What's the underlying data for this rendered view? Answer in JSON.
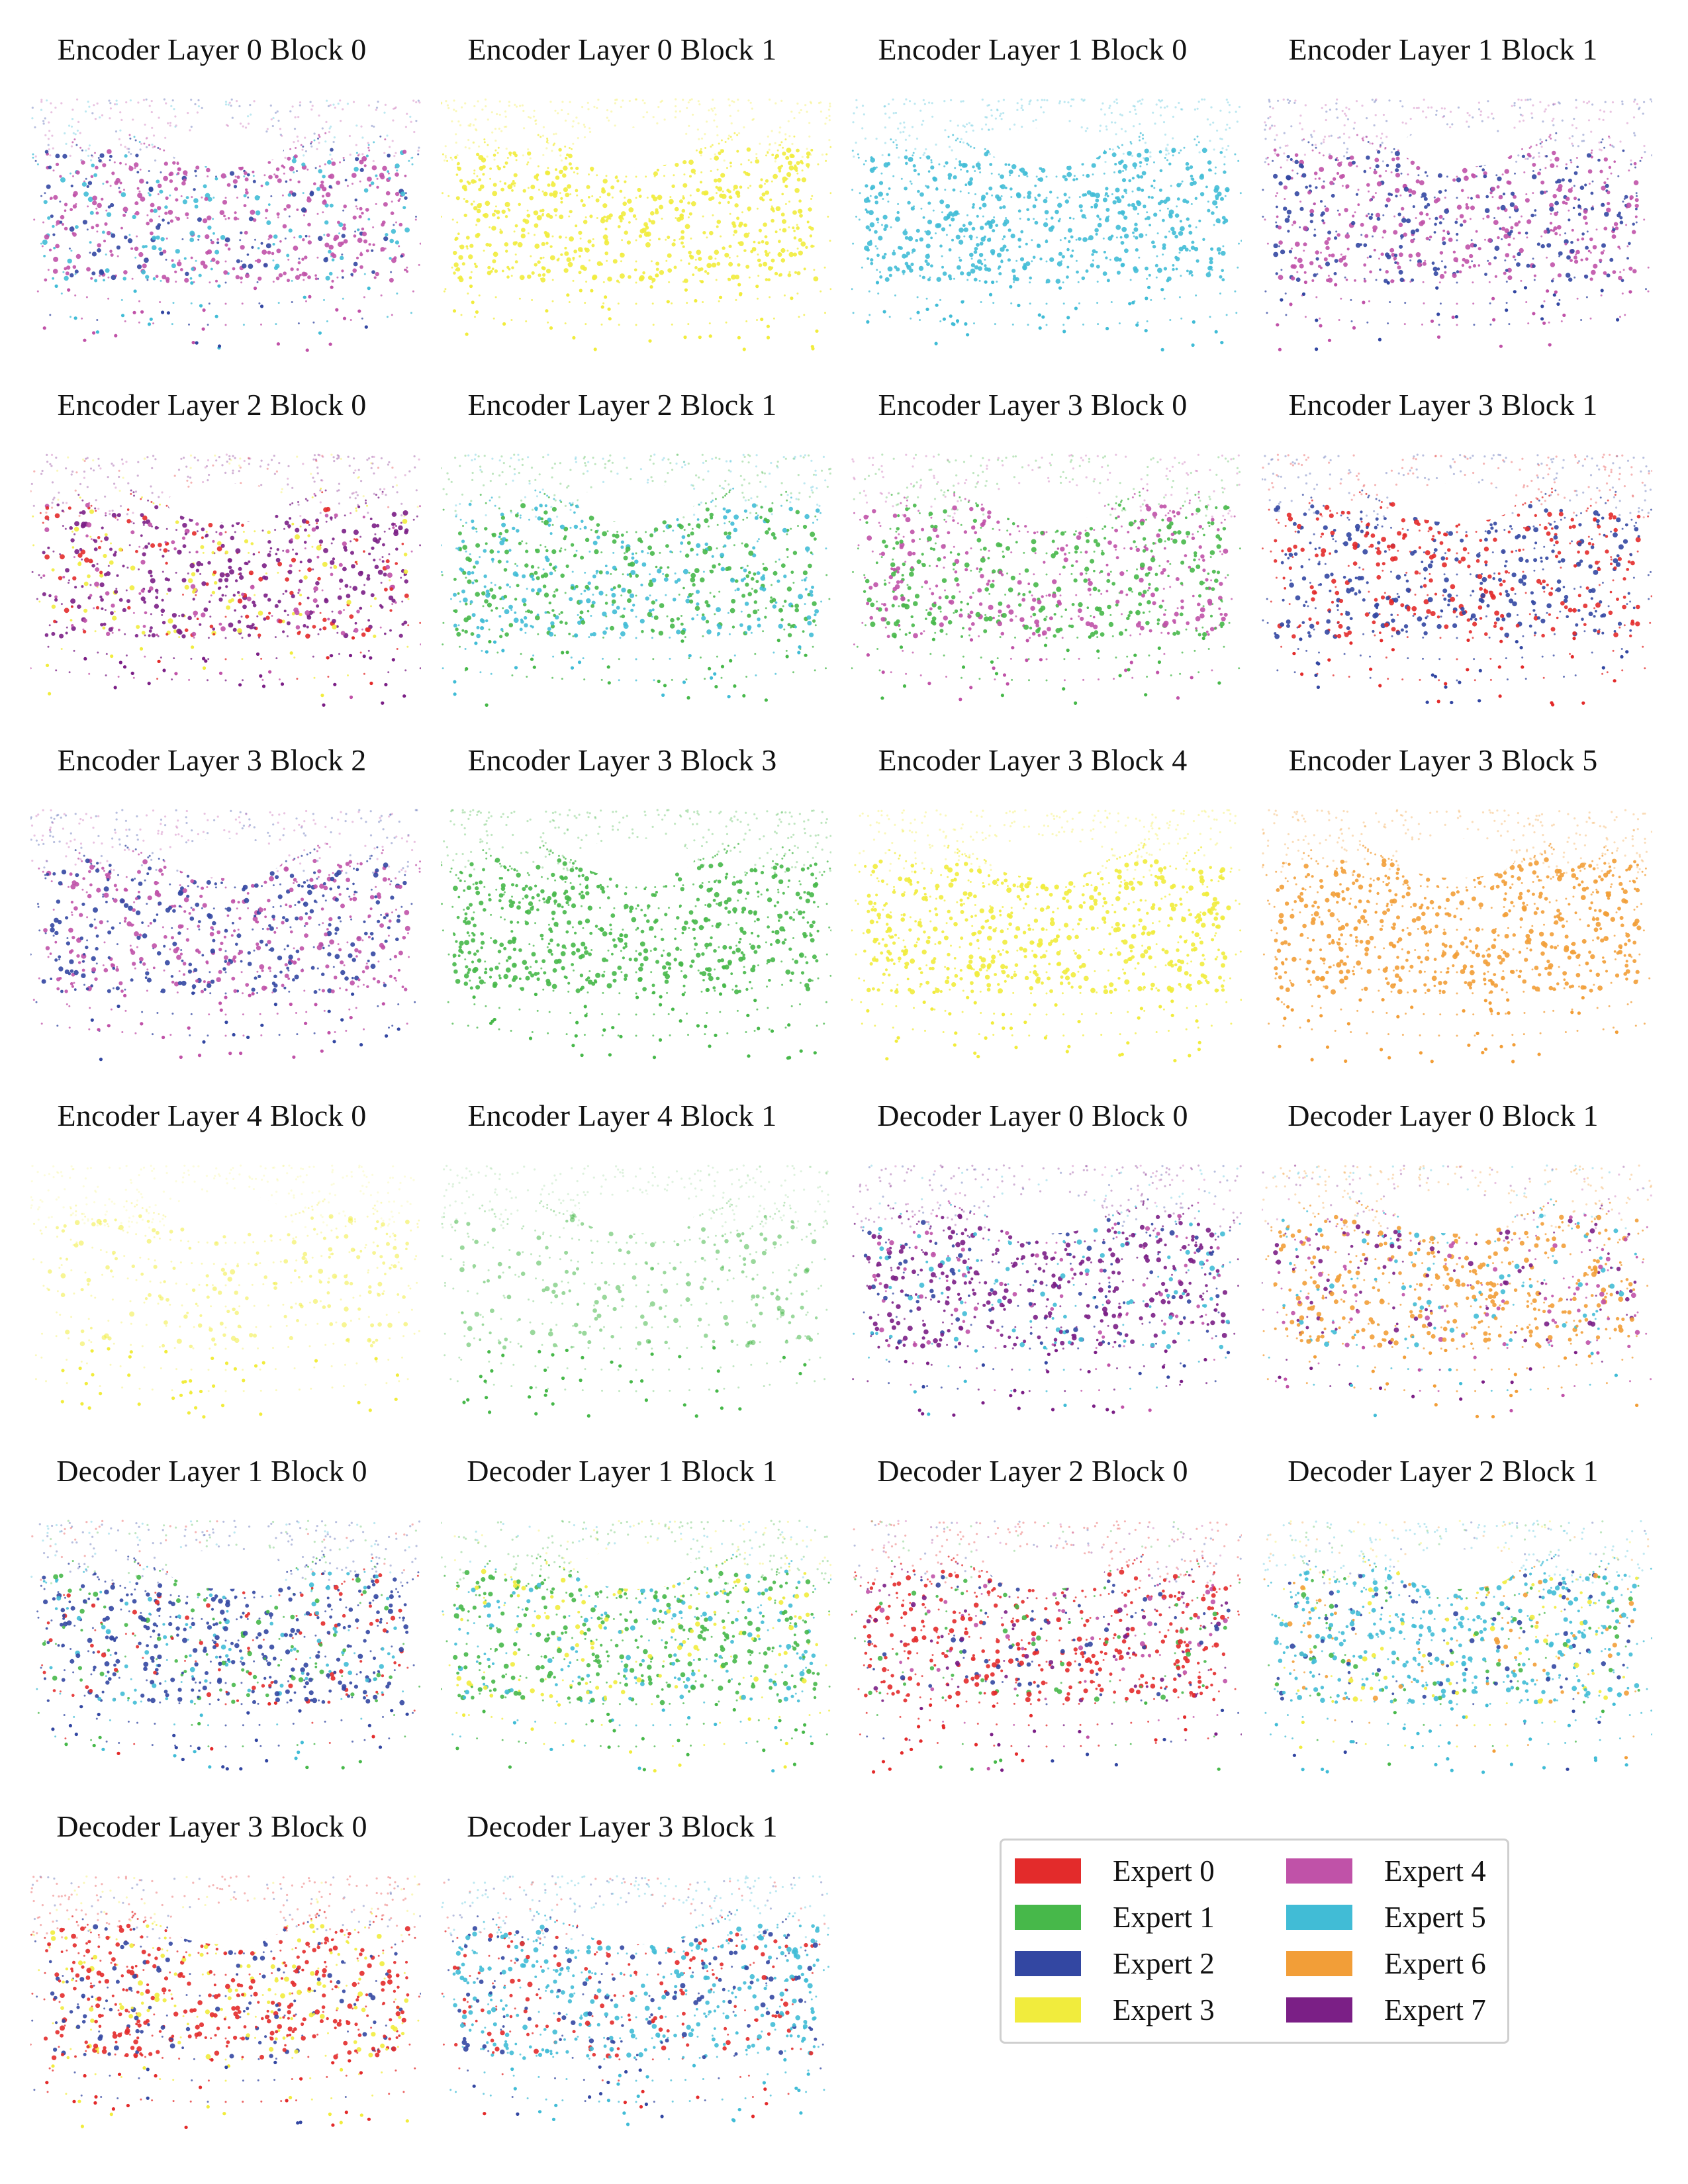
{
  "chart_data": {
    "type": "scatter",
    "panels": [
      {
        "title": "Encoder Layer 0 Block 0",
        "experts": [
          4,
          5,
          2
        ]
      },
      {
        "title": "Encoder Layer 0 Block 1",
        "experts": [
          3
        ]
      },
      {
        "title": "Encoder Layer 1 Block 0",
        "experts": [
          5
        ]
      },
      {
        "title": "Encoder Layer 1 Block 1",
        "experts": [
          4,
          2
        ]
      },
      {
        "title": "Encoder Layer 2 Block 0",
        "experts": [
          7,
          4,
          0,
          3
        ]
      },
      {
        "title": "Encoder Layer 2 Block 1",
        "experts": [
          1,
          5
        ]
      },
      {
        "title": "Encoder Layer 3 Block 0",
        "experts": [
          1,
          4
        ]
      },
      {
        "title": "Encoder Layer 3 Block 1",
        "experts": [
          2,
          0
        ]
      },
      {
        "title": "Encoder Layer 3 Block 2",
        "experts": [
          4,
          2
        ]
      },
      {
        "title": "Encoder Layer 3 Block 3",
        "experts": [
          1
        ]
      },
      {
        "title": "Encoder Layer 3 Block 4",
        "experts": [
          3
        ]
      },
      {
        "title": "Encoder Layer 3 Block 5",
        "experts": [
          6
        ]
      },
      {
        "title": "Encoder Layer 4 Block 0",
        "experts": [
          3
        ]
      },
      {
        "title": "Encoder Layer 4 Block 1",
        "experts": [
          1
        ]
      },
      {
        "title": "Decoder Layer 0 Block 0",
        "experts": [
          7,
          2,
          5,
          4
        ]
      },
      {
        "title": "Decoder Layer 0 Block 1",
        "experts": [
          6,
          5,
          7,
          4
        ]
      },
      {
        "title": "Decoder Layer 1 Block 0",
        "experts": [
          2,
          0,
          1,
          5
        ]
      },
      {
        "title": "Decoder Layer 1 Block 1",
        "experts": [
          1,
          3,
          5
        ]
      },
      {
        "title": "Decoder Layer 2 Block 0",
        "experts": [
          0,
          1,
          7,
          2,
          4
        ]
      },
      {
        "title": "Decoder Layer 2 Block 1",
        "experts": [
          5,
          1,
          2,
          6,
          3
        ]
      },
      {
        "title": "Decoder Layer 3 Block 0",
        "experts": [
          0,
          3,
          2
        ]
      },
      {
        "title": "Decoder Layer 3 Block 1",
        "experts": [
          5,
          0,
          2
        ]
      }
    ],
    "legend": [
      {
        "label": "Expert 0",
        "color": "#e32b2b"
      },
      {
        "label": "Expert 1",
        "color": "#47b84a"
      },
      {
        "label": "Expert 2",
        "color": "#3347a2"
      },
      {
        "label": "Expert 3",
        "color": "#f1ec3d"
      },
      {
        "label": "Expert 4",
        "color": "#c052a8"
      },
      {
        "label": "Expert 5",
        "color": "#41bcd6"
      },
      {
        "label": "Expert 6",
        "color": "#f29e38"
      },
      {
        "label": "Expert 7",
        "color": "#7b1f86"
      }
    ],
    "legend_placement": "bottom-right"
  }
}
